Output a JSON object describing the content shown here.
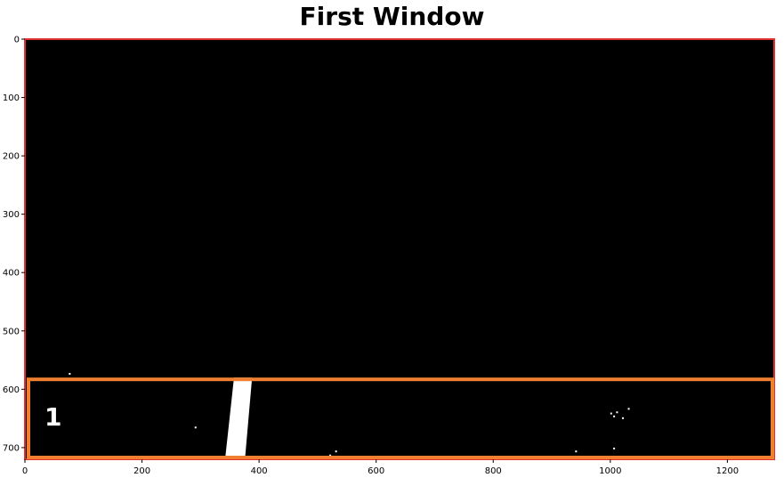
{
  "chart_data": {
    "type": "heatmap",
    "title": "First Window",
    "xlim": [
      0,
      1280
    ],
    "ylim": [
      720,
      0
    ],
    "x_ticks": [
      "0",
      "200",
      "400",
      "600",
      "800",
      "1000",
      "1200"
    ],
    "y_ticks": [
      "0",
      "100",
      "200",
      "300",
      "400",
      "500",
      "600",
      "700"
    ],
    "image": "binary lane mask: black background, white lane pixels near bottom",
    "lane_pixels": [
      {
        "x": [
          345,
          385
        ],
        "y": [
          580,
          720
        ]
      }
    ],
    "frame_color": "#e03030",
    "window": {
      "label": "1",
      "x": [
        0,
        1280
      ],
      "y": [
        580,
        720
      ],
      "color": "#f08030"
    }
  }
}
